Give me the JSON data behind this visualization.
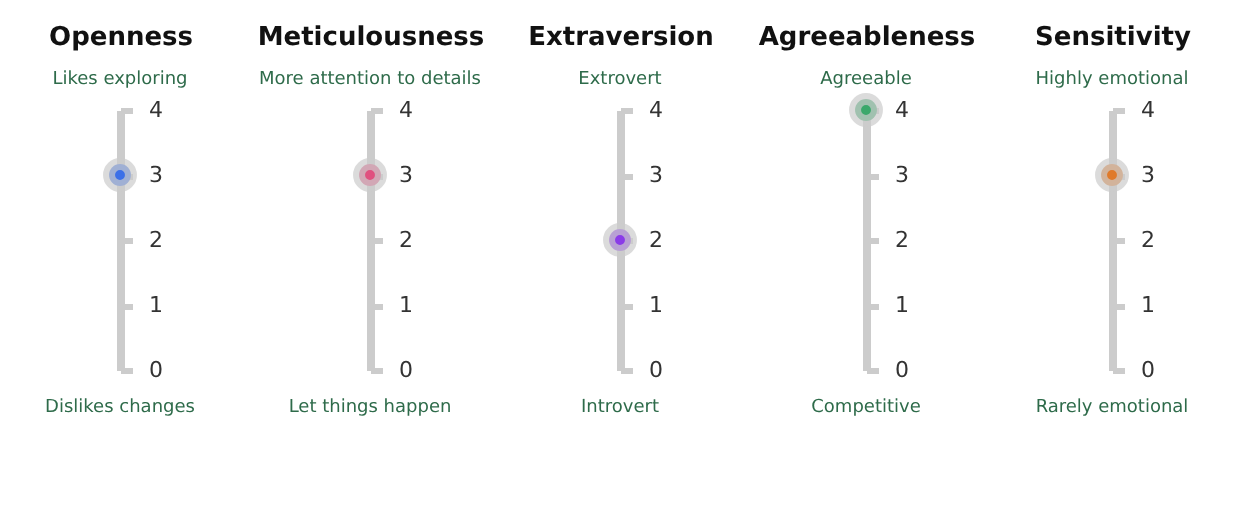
{
  "chart_data": [
    {
      "type": "scatter",
      "categories": [
        "Openness"
      ],
      "annotations": [
        "Likes exploring",
        "Dislikes changes"
      ],
      "values": [
        3
      ],
      "color": "#3b6fe8",
      "marker": "circle",
      "ylim": [
        0,
        4
      ],
      "yticks": [
        0,
        1,
        2,
        3,
        4
      ]
    },
    {
      "type": "scatter",
      "categories": [
        "Meticulousness"
      ],
      "annotations": [
        "More attention to details",
        "Let things happen"
      ],
      "values": [
        3
      ],
      "color": "#e0507f",
      "marker": "circle",
      "ylim": [
        0,
        4
      ],
      "yticks": [
        0,
        1,
        2,
        3,
        4
      ]
    },
    {
      "type": "scatter",
      "categories": [
        "Extraversion"
      ],
      "annotations": [
        "Extrovert",
        "Introvert"
      ],
      "values": [
        2
      ],
      "color": "#8a3be8",
      "marker": "circle",
      "ylim": [
        0,
        4
      ],
      "yticks": [
        0,
        1,
        2,
        3,
        4
      ]
    },
    {
      "type": "scatter",
      "categories": [
        "Agreeableness"
      ],
      "annotations": [
        "Agreeable",
        "Competitive"
      ],
      "values": [
        4
      ],
      "color": "#3aa86b",
      "marker": "circle",
      "ylim": [
        0,
        4
      ],
      "yticks": [
        0,
        1,
        2,
        3,
        4
      ]
    },
    {
      "type": "scatter",
      "categories": [
        "Sensitivity"
      ],
      "annotations": [
        "Highly emotional",
        "Rarely emotional"
      ],
      "values": [
        3
      ],
      "color": "#e07a2a",
      "marker": "circle",
      "ylim": [
        0,
        4
      ],
      "yticks": [
        0,
        1,
        2,
        3,
        4
      ]
    }
  ]
}
